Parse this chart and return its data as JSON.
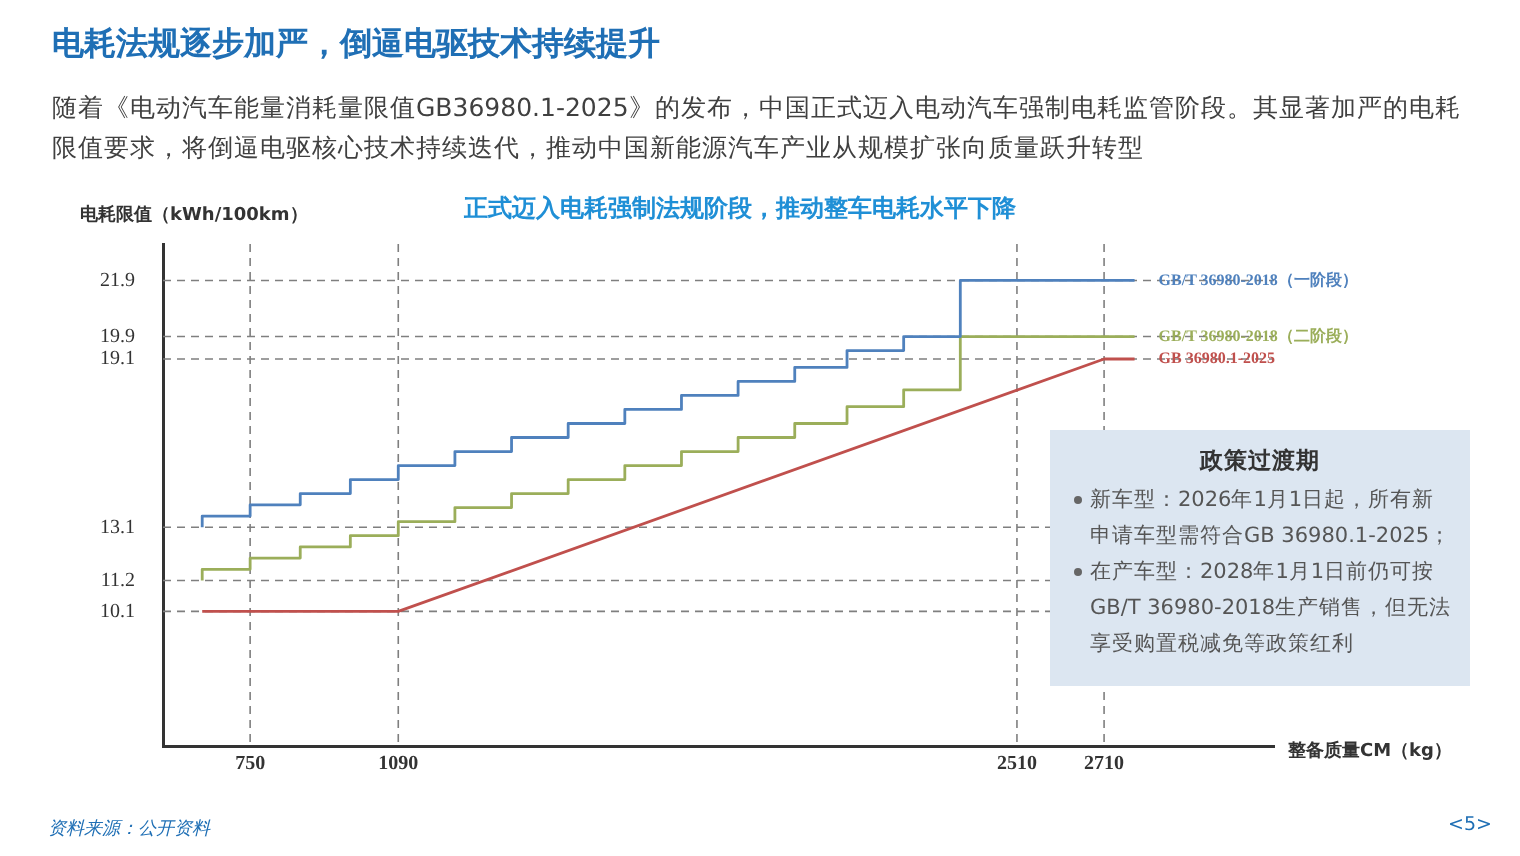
{
  "chart_data": {
    "type": "step",
    "title": "电耗法规逐步加严，倒逼电驱技术持续提升",
    "subtitle": "随着《电动汽车能量消耗量限值GB36980.1-2025》的发布，中国正式迈入电动汽车强制电耗监管阶段。其显著加严的电耗限值要求，将倒逼电驱核心技术持续迭代，推动中国新能源汽车产业从规模扩张向质量跃升转型",
    "ylabel": "电耗限值（kWh/100km）",
    "xlabel": "整备质量CM（kg）",
    "annotations": [
      "正式迈入电耗强制法规阶段，推动整车电耗水平下降",
      "政策过渡期",
      "新车型：2026年1月1日起，所有新申请车型需符合GB 36980.1-2025；",
      "在产车型：2028年1月1日前仍可按GB/T 36980-2018生产销售，但无法享受购置税减免等政策红利",
      "资料来源：公开资料",
      "<5>"
    ],
    "series": [
      {
        "name": "GB/T 36980-2018（一阶段）",
        "color": "#4f81bd",
        "x": [
          640,
          750,
          865,
          980,
          1090,
          1220,
          1350,
          1480,
          1610,
          1740,
          1870,
          2000,
          2120,
          2250,
          2380,
          2510,
          2780
        ],
        "values": [
          13.1,
          13.5,
          13.9,
          14.3,
          14.8,
          15.3,
          15.8,
          16.3,
          16.8,
          17.3,
          17.8,
          18.3,
          18.8,
          19.4,
          19.9,
          21.9,
          21.9
        ]
      },
      {
        "name": "GB/T 36980-2018（二阶段）",
        "color": "#9bae5a",
        "x": [
          640,
          750,
          865,
          980,
          1090,
          1220,
          1350,
          1480,
          1610,
          1740,
          1870,
          2000,
          2120,
          2250,
          2380,
          2510,
          2780
        ],
        "values": [
          11.2,
          11.6,
          12.0,
          12.4,
          12.8,
          13.3,
          13.8,
          14.3,
          14.8,
          15.3,
          15.8,
          16.3,
          16.8,
          17.4,
          18.0,
          19.9,
          19.9
        ]
      },
      {
        "name": "GB 36980.1-2025",
        "type": "line",
        "color": "#c0504d",
        "x": [
          640,
          1090,
          2710,
          2780
        ],
        "values": [
          10.1,
          10.1,
          19.1,
          19.1
        ]
      }
    ],
    "xlim": [
      550,
      3100
    ],
    "xticks": [
      750,
      1090,
      2510,
      2710
    ],
    "ylim": [
      5.3,
      23.2
    ],
    "yticks": [
      10.1,
      11.2,
      13.1,
      19.1,
      19.9,
      21.9
    ],
    "ref_lines": [
      {
        "axis": "y",
        "value": 21.9,
        "color": "#7f7f7f",
        "line_style": "dashed"
      },
      {
        "axis": "y",
        "value": 19.9,
        "color": "#7f7f7f",
        "line_style": "dashed"
      },
      {
        "axis": "y",
        "value": 19.1,
        "color": "#7f7f7f",
        "line_style": "dashed"
      },
      {
        "axis": "y",
        "value": 13.1,
        "color": "#7f7f7f",
        "line_style": "dashed"
      },
      {
        "axis": "y",
        "value": 11.2,
        "color": "#7f7f7f",
        "line_style": "dashed"
      },
      {
        "axis": "y",
        "value": 10.1,
        "color": "#7f7f7f",
        "line_style": "dashed"
      },
      {
        "axis": "x",
        "value": 750,
        "color": "#7f7f7f",
        "line_style": "dashed"
      },
      {
        "axis": "x",
        "value": 1090,
        "color": "#7f7f7f",
        "line_style": "dashed"
      },
      {
        "axis": "x",
        "value": 2510,
        "color": "#7f7f7f",
        "line_style": "dashed"
      },
      {
        "axis": "x",
        "value": 2710,
        "color": "#7f7f7f",
        "line_style": "dashed"
      }
    ],
    "grid": false,
    "legend": false
  }
}
